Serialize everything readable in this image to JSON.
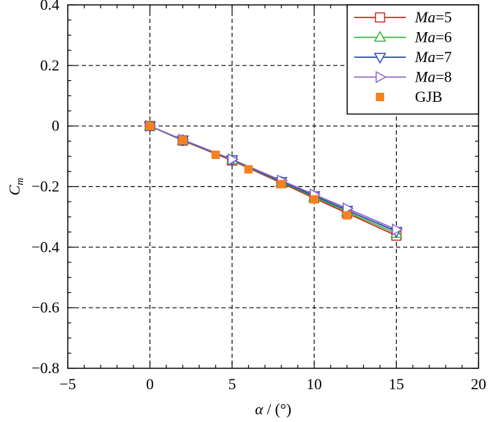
{
  "chart_data": {
    "type": "line",
    "xlabel": {
      "symbol": "α",
      "rest": " / (°)"
    },
    "ylabel": {
      "main": "C",
      "sub": "m"
    },
    "xlim": [
      -5,
      20
    ],
    "ylim": [
      -0.8,
      0.4
    ],
    "x_ticks": [
      -5,
      0,
      5,
      10,
      15,
      20
    ],
    "x_tick_labels": [
      "−5",
      "0",
      "5",
      "10",
      "15",
      "20"
    ],
    "y_ticks": [
      -0.8,
      -0.6,
      -0.4,
      -0.2,
      0,
      0.2,
      0.4
    ],
    "y_tick_labels": [
      "−0.8",
      "−0.6",
      "−0.4",
      "−0.2",
      "0",
      "0.2",
      "0.4"
    ],
    "grid": true,
    "legend_position": "top-right",
    "series": [
      {
        "name": "Ma=5",
        "name_italic": "Ma",
        "name_rest": "=5",
        "color": "#c8281e",
        "marker": "square-open",
        "x": [
          0,
          2,
          5,
          8,
          10,
          12,
          15
        ],
        "y": [
          0.0,
          -0.048,
          -0.114,
          -0.188,
          -0.238,
          -0.288,
          -0.362
        ]
      },
      {
        "name": "Ma=6",
        "name_italic": "Ma",
        "name_rest": "=6",
        "color": "#3cb43c",
        "marker": "triangle-up-open",
        "x": [
          0,
          2,
          5,
          8,
          10,
          12,
          15
        ],
        "y": [
          0.0,
          -0.047,
          -0.112,
          -0.185,
          -0.234,
          -0.283,
          -0.355
        ]
      },
      {
        "name": "Ma=7",
        "name_italic": "Ma",
        "name_rest": "=7",
        "color": "#2846b4",
        "marker": "triangle-down-open",
        "x": [
          0,
          2,
          5,
          8,
          10,
          12,
          15
        ],
        "y": [
          0.0,
          -0.046,
          -0.111,
          -0.183,
          -0.23,
          -0.278,
          -0.348
        ]
      },
      {
        "name": "Ma=8",
        "name_italic": "Ma",
        "name_rest": "=8",
        "color": "#8c64c8",
        "marker": "triangle-right-open",
        "x": [
          0,
          2,
          5,
          8,
          10,
          12,
          15
        ],
        "y": [
          0.0,
          -0.045,
          -0.11,
          -0.18,
          -0.226,
          -0.272,
          -0.342
        ]
      },
      {
        "name": "GJB",
        "name_italic": "",
        "name_rest": "GJB",
        "color": "#f58220",
        "marker": "square-filled",
        "line": false,
        "x": [
          0,
          2,
          4,
          6,
          8,
          10,
          12
        ],
        "y": [
          0.0,
          -0.047,
          -0.095,
          -0.143,
          -0.192,
          -0.242,
          -0.295
        ]
      }
    ]
  }
}
